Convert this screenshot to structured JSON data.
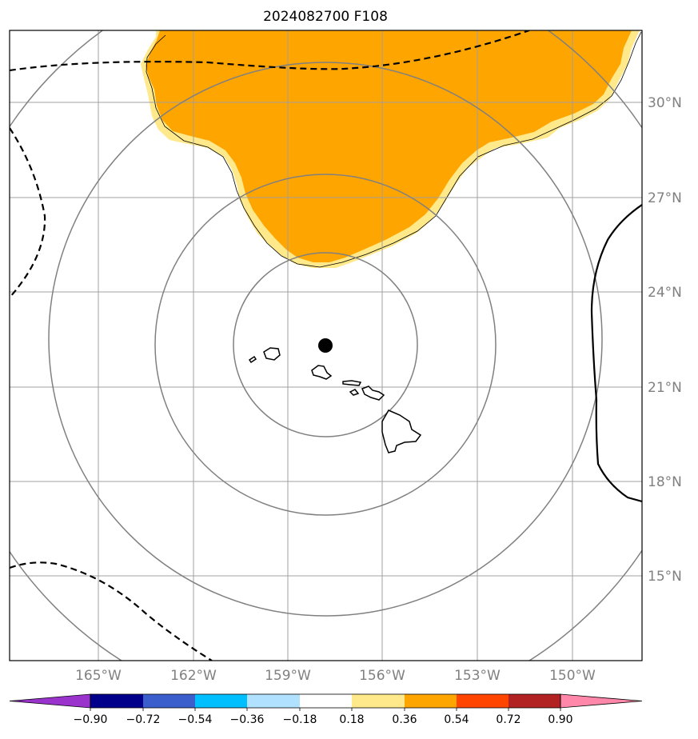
{
  "title": "2024082700 F108",
  "map": {
    "lon_ticks": [
      "165°W",
      "162°W",
      "159°W",
      "156°W",
      "153°W",
      "150°W"
    ],
    "lat_ticks": [
      "30°N",
      "27°N",
      "24°N",
      "21°N",
      "18°N",
      "15°N"
    ],
    "grid": true,
    "range_rings": 4,
    "center_marker": "black-dot",
    "colors": {
      "shaded_region": "#ffa500",
      "shaded_edge": "#ffe98a",
      "grid": "#a0a0a0",
      "rings": "#808080",
      "contour": "#000000",
      "land": "#000000"
    }
  },
  "colorbar": {
    "tick_labels": [
      "−0.90",
      "−0.72",
      "−0.54",
      "−0.36",
      "−0.18",
      "0.18",
      "0.36",
      "0.54",
      "0.72",
      "0.90"
    ],
    "colors": [
      "#9933cc",
      "#00008b",
      "#3a5fcd",
      "#00bfff",
      "#b0e2ff",
      "#ffffff",
      "#ffe98a",
      "#ffa500",
      "#ff4500",
      "#b22222",
      "#ff88aa"
    ],
    "extend": "both"
  }
}
